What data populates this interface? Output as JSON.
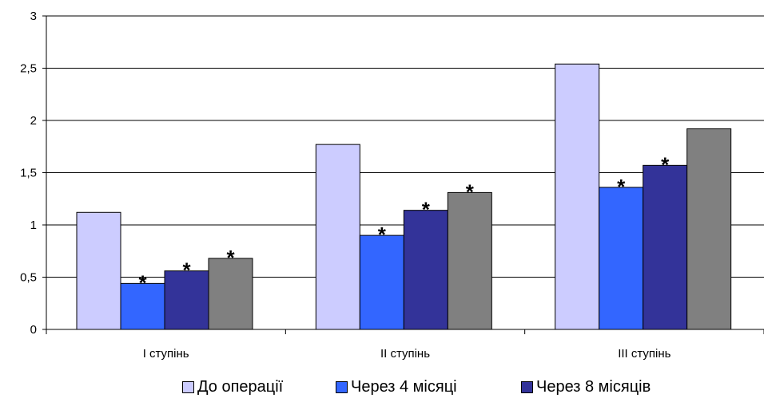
{
  "chart_data": {
    "type": "bar",
    "categories": [
      "I ступінь",
      "II ступінь",
      "III ступінь"
    ],
    "series": [
      {
        "name": "До операції",
        "values": [
          1.12,
          1.77,
          2.54
        ],
        "color": "#ccccff",
        "stars": [
          false,
          false,
          false
        ]
      },
      {
        "name": "Через 4 місяці",
        "values": [
          0.44,
          0.9,
          1.36
        ],
        "color": "#3366ff",
        "stars": [
          true,
          true,
          true
        ]
      },
      {
        "name": "Через 8 місяців",
        "values": [
          0.56,
          1.14,
          1.57
        ],
        "color": "#333399",
        "stars": [
          true,
          true,
          true
        ]
      },
      {
        "name": "",
        "values": [
          0.68,
          1.31,
          1.92
        ],
        "color": "#808080",
        "stars": [
          true,
          true,
          false
        ]
      }
    ],
    "y_ticks": [
      "0",
      "0,5",
      "1",
      "1,5",
      "2",
      "2,5",
      "3"
    ],
    "y_tick_values": [
      0,
      0.5,
      1,
      1.5,
      2,
      2.5,
      3
    ],
    "ylim": [
      0,
      3
    ],
    "grid": true,
    "marker_symbol": "*",
    "legend_position": "bottom"
  }
}
